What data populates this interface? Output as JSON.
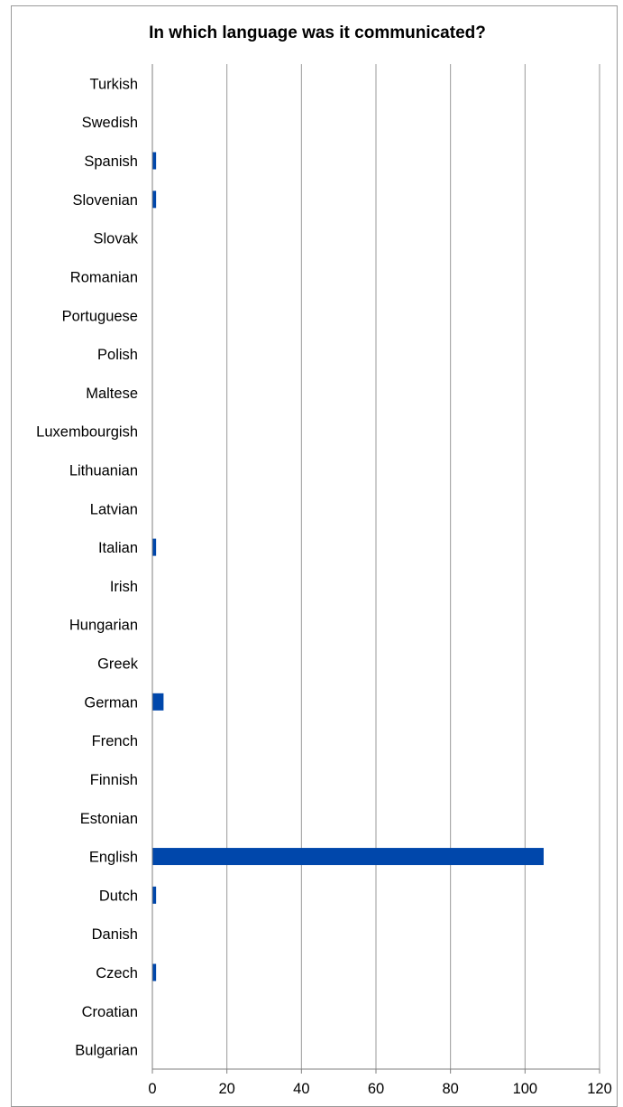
{
  "chart_data": {
    "type": "bar",
    "orientation": "horizontal",
    "title": "In which language was it communicated?",
    "xlabel": "",
    "ylabel": "",
    "categories": [
      "Turkish",
      "Swedish",
      "Spanish",
      "Slovenian",
      "Slovak",
      "Romanian",
      "Portuguese",
      "Polish",
      "Maltese",
      "Luxembourgish",
      "Lithuanian",
      "Latvian",
      "Italian",
      "Irish",
      "Hungarian",
      "Greek",
      "German",
      "French",
      "Finnish",
      "Estonian",
      "English",
      "Dutch",
      "Danish",
      "Czech",
      "Croatian",
      "Bulgarian"
    ],
    "values": [
      0,
      0,
      1,
      1,
      0,
      0,
      0,
      0,
      0,
      0,
      0,
      0,
      1,
      0,
      0,
      0,
      3,
      0,
      0,
      0,
      105,
      1,
      0,
      1,
      0,
      0
    ],
    "xlim": [
      0,
      120
    ],
    "xticks": [
      0,
      20,
      40,
      60,
      80,
      100,
      120
    ],
    "grid": "vertical",
    "legend": "none",
    "bar_color": "#0047AB",
    "grid_color": "#999999"
  }
}
